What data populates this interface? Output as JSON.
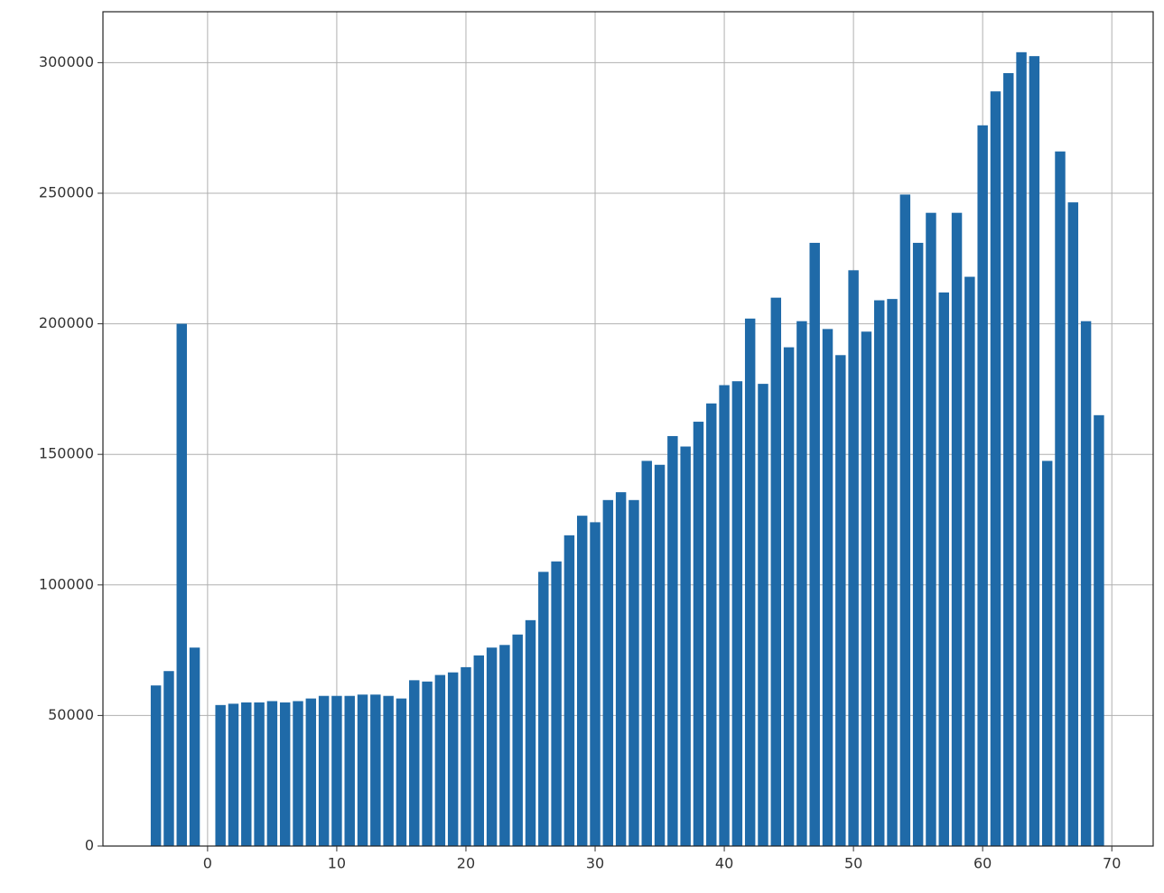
{
  "chart_data": {
    "type": "bar",
    "x": [
      -4,
      -3,
      -2,
      -1,
      1,
      2,
      3,
      4,
      5,
      6,
      7,
      8,
      9,
      10,
      11,
      12,
      13,
      14,
      15,
      16,
      17,
      18,
      19,
      20,
      21,
      22,
      23,
      24,
      25,
      26,
      27,
      28,
      29,
      30,
      31,
      32,
      33,
      34,
      35,
      36,
      37,
      38,
      39,
      40,
      41,
      42,
      43,
      44,
      45,
      46,
      47,
      48,
      49,
      50,
      51,
      52,
      53,
      54,
      55,
      56,
      57,
      58,
      59,
      60,
      61,
      62,
      63,
      64,
      65,
      66,
      67,
      68,
      69
    ],
    "values": [
      61500,
      67000,
      200000,
      76000,
      54000,
      54500,
      55000,
      55000,
      55500,
      55000,
      55500,
      56500,
      57500,
      57500,
      57500,
      58000,
      58000,
      57500,
      56500,
      63500,
      63000,
      65500,
      66500,
      68500,
      73000,
      76000,
      77000,
      81000,
      86500,
      105000,
      109000,
      119000,
      126500,
      124000,
      132500,
      135500,
      132500,
      147500,
      146000,
      157000,
      153000,
      162500,
      169500,
      176500,
      178000,
      202000,
      177000,
      210000,
      191000,
      201000,
      231000,
      198000,
      188000,
      220500,
      197000,
      209000,
      209500,
      249500,
      231000,
      242500,
      212000,
      242500,
      218000,
      276000,
      289000,
      296000,
      304000,
      302500,
      147500,
      266000,
      246500,
      201000,
      165000
    ],
    "color": "#1f6aa8",
    "xlim": [
      -8.1,
      73.2
    ],
    "ylim": [
      0,
      319500
    ],
    "xticks": [
      0,
      10,
      20,
      30,
      40,
      50,
      60,
      70
    ],
    "yticks": [
      0,
      50000,
      100000,
      150000,
      200000,
      250000,
      300000
    ],
    "grid": true
  }
}
